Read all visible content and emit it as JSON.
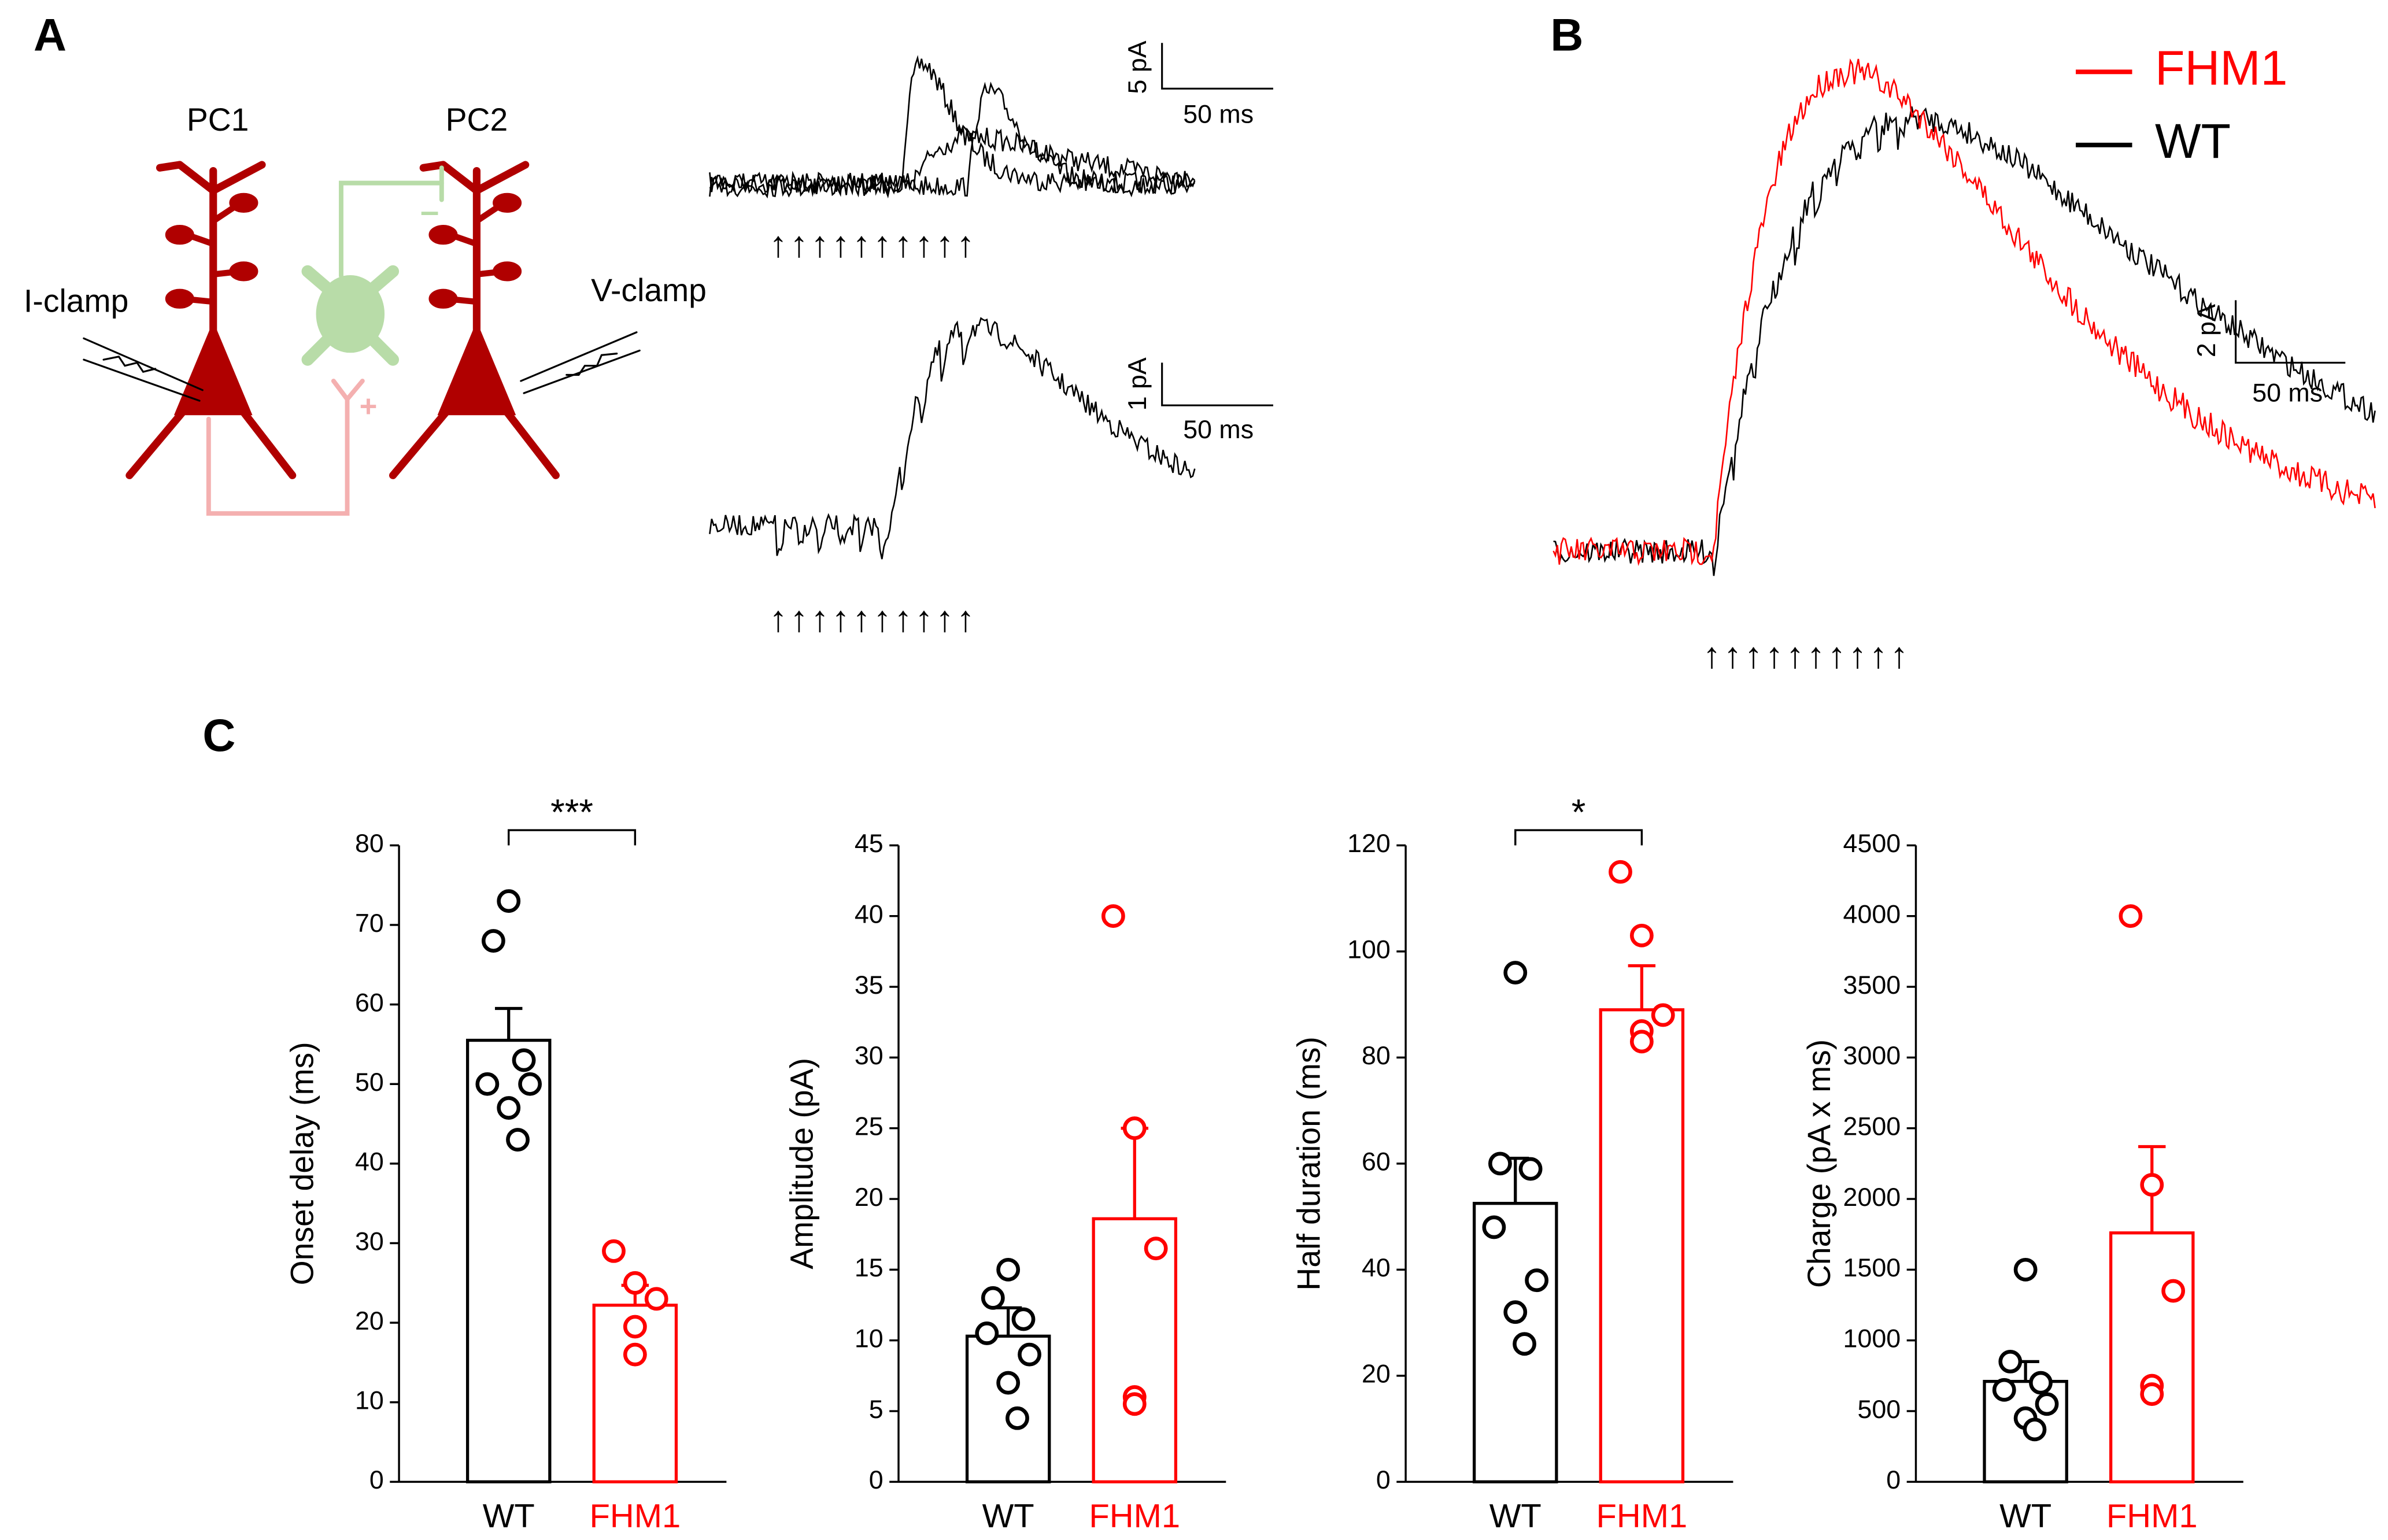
{
  "panels": {
    "a": "A",
    "b": "B",
    "c": "C"
  },
  "diagram": {
    "cell_left": "PC1",
    "cell_right": "PC2",
    "clamp_left": "I-clamp",
    "clamp_right": "V-clamp",
    "inhibitory_sign": "–",
    "excitatory_sign": "+"
  },
  "scale_bars": [
    {
      "y": "5 pA",
      "x": "50 ms"
    },
    {
      "y": "1 pA",
      "x": "50 ms"
    },
    {
      "y": "2 pA",
      "x": "50 ms"
    }
  ],
  "stimulus_markers": [
    "↑↑↑↑↑↑↑↑↑↑",
    "↑↑↑↑↑↑↑↑↑↑",
    "↑↑↑↑↑↑↑↑↑↑"
  ],
  "legend": [
    {
      "name": "FHM1",
      "color": "#ff0000"
    },
    {
      "name": "WT",
      "color": "#000000"
    }
  ],
  "chart_data": [
    {
      "type": "bar",
      "ylabel": "Onset delay (ms)",
      "categories": [
        "WT",
        "FHM1"
      ],
      "colors": [
        "#000000",
        "#ff0000"
      ],
      "values": [
        55.5,
        22.2
      ],
      "errors": [
        4,
        2.5
      ],
      "points": [
        [
          73,
          68,
          53,
          50,
          50,
          47,
          43
        ],
        [
          29,
          25,
          23,
          19.5,
          16
        ]
      ],
      "ylim": [
        0,
        80
      ],
      "yticks": [
        0,
        10,
        20,
        30,
        40,
        50,
        60,
        70,
        80
      ],
      "significance": "***"
    },
    {
      "type": "bar",
      "ylabel": "Amplitude (pA)",
      "categories": [
        "WT",
        "FHM1"
      ],
      "colors": [
        "#000000",
        "#ff0000"
      ],
      "values": [
        10.3,
        18.6
      ],
      "errors": [
        2,
        6.4
      ],
      "points": [
        [
          15,
          13,
          11.5,
          10.5,
          9,
          7,
          4.5
        ],
        [
          40,
          25,
          16.5,
          6,
          5.5
        ]
      ],
      "ylim": [
        0,
        45
      ],
      "yticks": [
        0,
        5,
        10,
        15,
        20,
        25,
        30,
        35,
        40,
        45
      ]
    },
    {
      "type": "bar",
      "ylabel": "Half duration (ms)",
      "categories": [
        "WT",
        "FHM1"
      ],
      "colors": [
        "#000000",
        "#ff0000"
      ],
      "values": [
        52.5,
        89
      ],
      "errors": [
        8.5,
        8.3
      ],
      "points": [
        [
          96,
          60,
          59,
          48,
          38,
          32,
          26
        ],
        [
          115,
          103,
          88,
          85,
          83
        ]
      ],
      "ylim": [
        0,
        120
      ],
      "yticks": [
        0,
        20,
        40,
        60,
        80,
        100,
        120
      ],
      "significance": "*"
    },
    {
      "type": "bar",
      "ylabel": "Charge (pA x ms)",
      "categories": [
        "WT",
        "FHM1"
      ],
      "colors": [
        "#000000",
        "#ff0000"
      ],
      "values": [
        710,
        1760
      ],
      "errors": [
        140,
        610
      ],
      "points": [
        [
          1500,
          850,
          700,
          650,
          550,
          450,
          370
        ],
        [
          4000,
          2100,
          1350,
          680,
          620
        ]
      ],
      "ylim": [
        0,
        4500
      ],
      "yticks": [
        0,
        500,
        1000,
        1500,
        2000,
        2500,
        3000,
        3500,
        4000,
        4500
      ]
    }
  ]
}
